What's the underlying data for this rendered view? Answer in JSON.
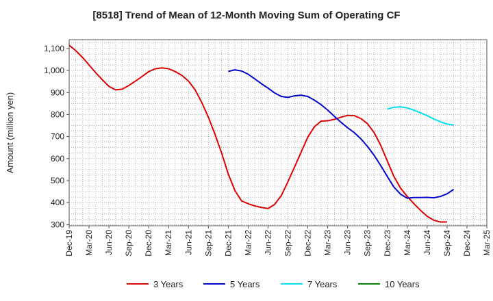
{
  "chart_data": {
    "type": "line",
    "title": "[8518]  Trend of Mean of 12-Month Moving Sum of Operating CF",
    "xlabel": "",
    "ylabel": "Amount (million yen)",
    "ylim": [
      295,
      1140
    ],
    "yticks": [
      300,
      400,
      500,
      600,
      700,
      800,
      900,
      1000,
      1100
    ],
    "ytick_labels": [
      "300",
      "400",
      "500",
      "600",
      "700",
      "800",
      "900",
      "1,000",
      "1,100"
    ],
    "xtick_labels": [
      "Dec-19",
      "Mar-20",
      "Jun-20",
      "Sep-20",
      "Dec-20",
      "Mar-21",
      "Jun-21",
      "Sep-21",
      "Dec-21",
      "Mar-22",
      "Jun-22",
      "Sep-22",
      "Dec-22",
      "Mar-23",
      "Jun-23",
      "Sep-23",
      "Dec-23",
      "Mar-24",
      "Jun-24",
      "Sep-24",
      "Dec-24",
      "Mar-25"
    ],
    "x_start": "Dec-19",
    "x_step": "1 month",
    "series": [
      {
        "name": "3 Years",
        "color": "#dd0000",
        "start_index": 0,
        "values": [
          1115,
          1090,
          1060,
          1025,
          990,
          958,
          928,
          912,
          915,
          932,
          952,
          973,
          995,
          1008,
          1012,
          1008,
          995,
          978,
          952,
          912,
          855,
          788,
          710,
          625,
          530,
          455,
          408,
          395,
          385,
          378,
          373,
          392,
          432,
          495,
          562,
          630,
          698,
          745,
          770,
          772,
          778,
          788,
          796,
          795,
          782,
          758,
          718,
          660,
          588,
          518,
          465,
          428,
          395,
          365,
          338,
          320,
          312,
          312
        ]
      },
      {
        "name": "5 Years",
        "color": "#0000cc",
        "start_index": 24,
        "values": [
          996,
          1003,
          998,
          983,
          962,
          940,
          920,
          898,
          882,
          878,
          885,
          888,
          882,
          865,
          845,
          820,
          792,
          765,
          740,
          718,
          690,
          655,
          615,
          568,
          518,
          470,
          438,
          420,
          423,
          423,
          424,
          422,
          428,
          440,
          460
        ]
      },
      {
        "name": "7 Years",
        "color": "#00e0ee",
        "start_index": 48,
        "values": [
          825,
          833,
          835,
          830,
          820,
          808,
          795,
          780,
          767,
          757,
          752
        ]
      },
      {
        "name": "10 Years",
        "color": "#008000",
        "start_index": 0,
        "values": []
      }
    ],
    "legend_position": "bottom-center",
    "grid": true
  }
}
